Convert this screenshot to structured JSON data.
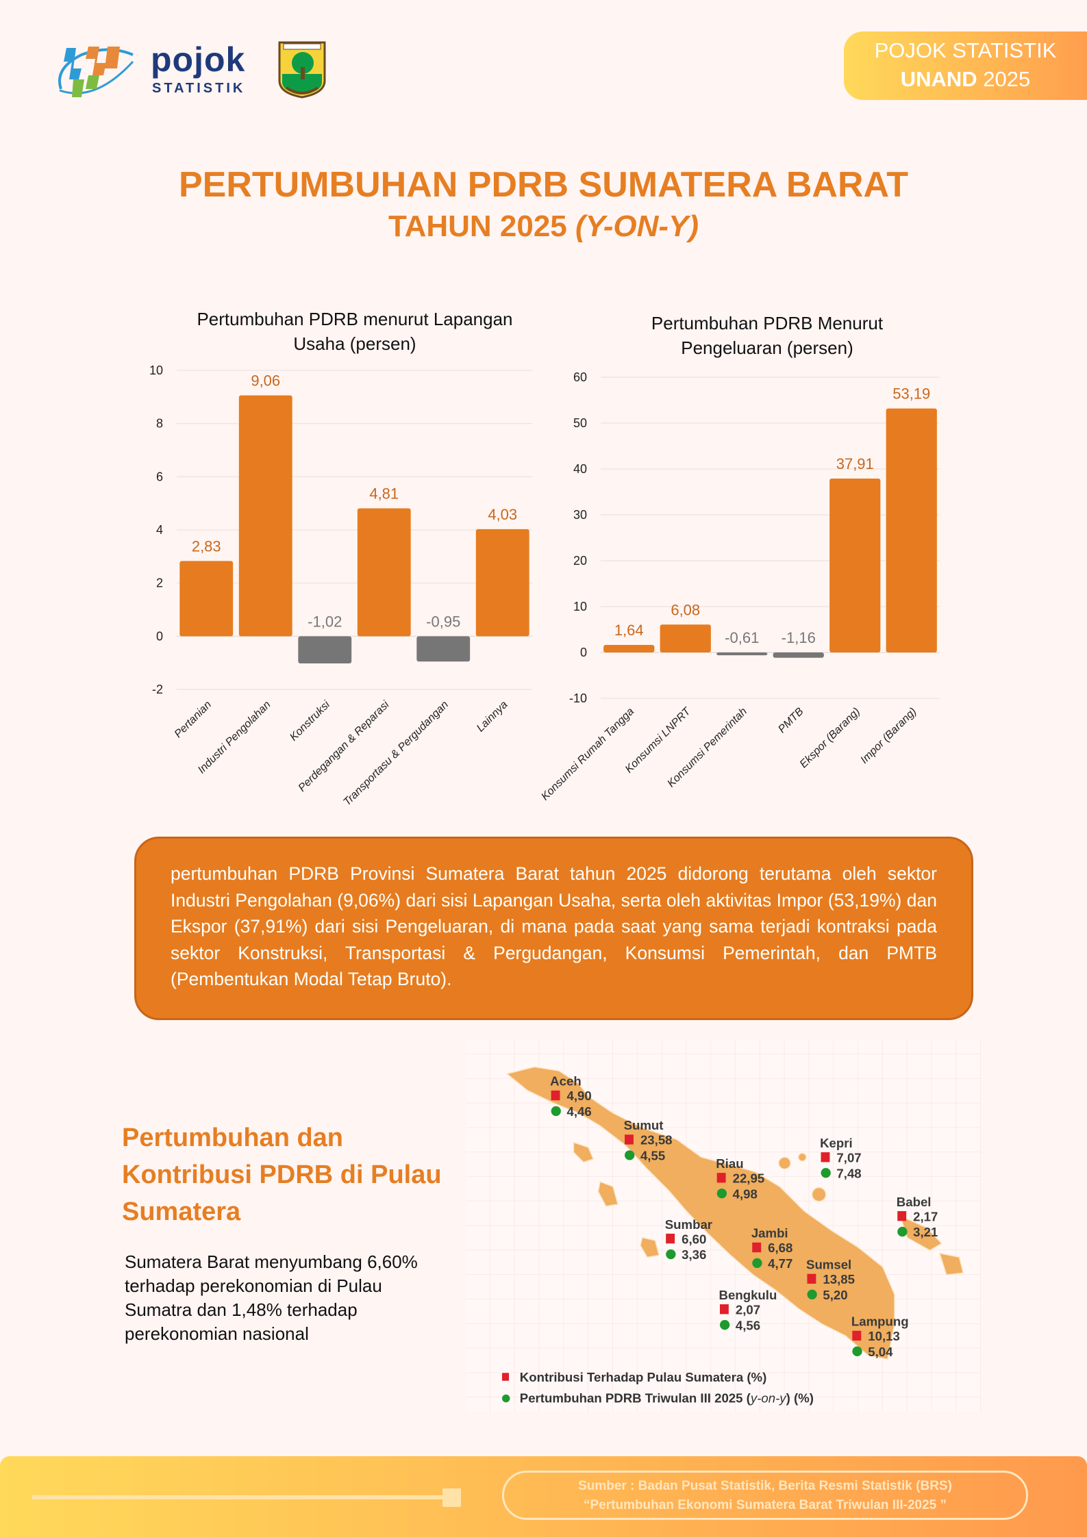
{
  "header": {
    "logo_word": "pojok",
    "logo_sub": "STATISTIK",
    "badge_line1": "POJOK STATISTIK",
    "badge_line2_bold": "UNAND",
    "badge_line2_rest": " 2025"
  },
  "title": {
    "line1": "PERTUMBUHAN PDRB SUMATERA BARAT",
    "line2": "TAHUN 2025 ",
    "line2_italic": "(Y-ON-Y)"
  },
  "colors": {
    "accent": "#E67C1F",
    "negative": "#767676",
    "label_positive": "#C9671A",
    "map_land": "#F0AE5E",
    "marker_contribution": "#E0202A",
    "marker_growth": "#1E9A2E"
  },
  "chart_data": [
    {
      "type": "bar",
      "title": "Pertumbuhan PDRB menurut Lapangan Usaha (persen)",
      "categories": [
        "Pertanian",
        "Industri Pengolahan",
        "Konstruksi",
        "Perdegangan & Reparasi",
        "Transportasu & Pergudangan",
        "Lainnya"
      ],
      "values": [
        2.83,
        9.06,
        -1.02,
        4.81,
        -0.95,
        4.03
      ],
      "data_labels": [
        "2,83",
        "9,06",
        "-1,02",
        "4,81",
        "-0,95",
        "4,03"
      ],
      "ylim": [
        -2,
        10
      ],
      "yticks": [
        "-2",
        "0",
        "2",
        "4",
        "6",
        "8",
        "10"
      ],
      "ytick_values": [
        -2,
        0,
        2,
        4,
        6,
        8,
        10
      ],
      "grid": true
    },
    {
      "type": "bar",
      "title": "Pertumbuhan PDRB Menurut Pengeluaran (persen)",
      "categories": [
        "Konsumsi Rumah Tangga",
        "Konsumsi LNPRT",
        "Konsumsi Pemerintah",
        "PMTB",
        "Ekspor (Barang)",
        "Impor (Barang)"
      ],
      "values": [
        1.64,
        6.08,
        -0.61,
        -1.16,
        37.91,
        53.19
      ],
      "data_labels": [
        "1,64",
        "6,08",
        "-0,61",
        "-1,16",
        "37,91",
        "53,19"
      ],
      "ylim": [
        -10,
        60
      ],
      "yticks": [
        "-10",
        "0",
        "10",
        "20",
        "30",
        "40",
        "50",
        "60"
      ],
      "ytick_values": [
        -10,
        0,
        10,
        20,
        30,
        40,
        50,
        60
      ],
      "grid": true
    }
  ],
  "summary": "pertumbuhan PDRB Provinsi Sumatera Barat tahun 2025 didorong terutama oleh sektor Industri Pengolahan (9,06%) dari sisi Lapangan Usaha, serta oleh aktivitas Impor (53,19%) dan Ekspor (37,91%) dari sisi Pengeluaran, di mana pada saat yang sama terjadi kontraksi pada sektor Konstruksi, Transportasi & Pergudangan, Konsumsi Pemerintah, dan PMTB (Pembentukan Modal Tetap Bruto).",
  "section": {
    "heading": "Pertumbuhan dan Kontribusi PDRB di Pulau Sumatera",
    "paragraph": "Sumatera Barat menyumbang 6,60% terhadap perekonomian di Pulau Sumatra dan 1,48% terhadap perekonomian nasional"
  },
  "map": {
    "regions": [
      {
        "name": "Aceh",
        "contribution": "4,90",
        "growth": "4,46"
      },
      {
        "name": "Sumut",
        "contribution": "23,58",
        "growth": "4,55"
      },
      {
        "name": "Riau",
        "contribution": "22,95",
        "growth": "4,98"
      },
      {
        "name": "Kepri",
        "contribution": "7,07",
        "growth": "7,48"
      },
      {
        "name": "Babel",
        "contribution": "2,17",
        "growth": "3,21"
      },
      {
        "name": "Sumbar",
        "contribution": "6,60",
        "growth": "3,36"
      },
      {
        "name": "Jambi",
        "contribution": "6,68",
        "growth": "4,77"
      },
      {
        "name": "Sumsel",
        "contribution": "13,85",
        "growth": "5,20"
      },
      {
        "name": "Bengkulu",
        "contribution": "2,07",
        "growth": "4,56"
      },
      {
        "name": "Lampung",
        "contribution": "10,13",
        "growth": "5,04"
      }
    ],
    "legend_contribution": "Kontribusi Terhadap Pulau Sumatera (%)",
    "legend_growth_prefix": "Pertumbuhan PDRB Triwulan III 2025 (",
    "legend_growth_italic": "y-on-y",
    "legend_growth_suffix": ") (%)"
  },
  "footer": {
    "source_line1": "Sumber : Badan Pusat Statistik, Berita Resmi Statistik (BRS)",
    "source_line2": "“Pertumbuhan Ekonomi Sumatera Barat Triwulan III-2025 ”"
  }
}
